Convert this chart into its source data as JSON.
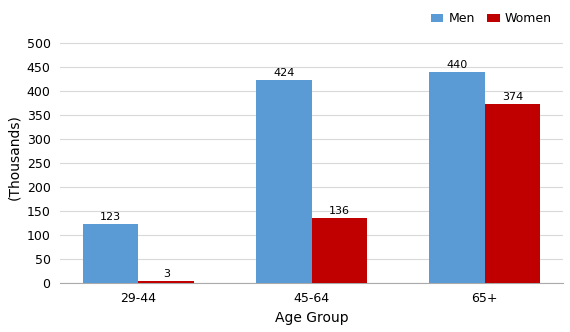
{
  "categories": [
    "29-44",
    "45-64",
    "65+"
  ],
  "men_values": [
    123,
    424,
    440
  ],
  "women_values": [
    3,
    136,
    374
  ],
  "men_color": "#5B9BD5",
  "women_color": "#C00000",
  "xlabel": "Age Group",
  "ylabel": "(Thousands)",
  "ylim": [
    0,
    525
  ],
  "yticks": [
    0,
    50,
    100,
    150,
    200,
    250,
    300,
    350,
    400,
    450,
    500
  ],
  "legend_labels": [
    "Men",
    "Women"
  ],
  "bar_width": 0.32,
  "grid_color": "#D9D9D9",
  "background_color": "#FFFFFF",
  "label_fontsize": 9,
  "tick_fontsize": 9,
  "axis_label_fontsize": 10,
  "annotation_fontsize": 8
}
